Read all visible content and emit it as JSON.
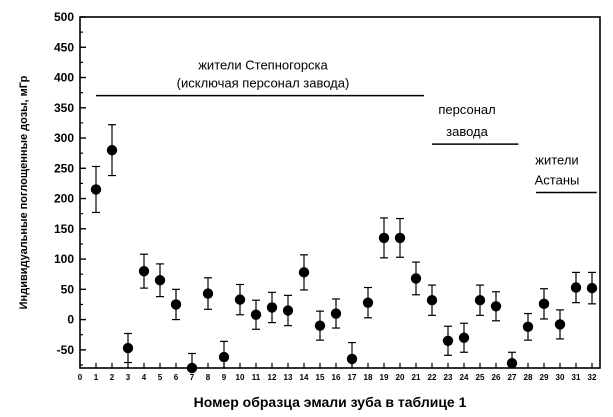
{
  "chart_data": {
    "type": "scatter",
    "title": "",
    "xlabel": "Номер образца эмали зуба в таблице 1",
    "ylabel": "Индивидуальные поглощенные дозы, мГр",
    "xlim": [
      0,
      32.5
    ],
    "ylim": [
      -80,
      500
    ],
    "x_ticks": [
      0,
      1,
      2,
      3,
      4,
      5,
      6,
      7,
      8,
      9,
      10,
      11,
      12,
      13,
      14,
      15,
      16,
      17,
      18,
      19,
      20,
      21,
      22,
      23,
      24,
      25,
      26,
      27,
      28,
      29,
      30,
      31,
      32
    ],
    "y_ticks": [
      -50,
      0,
      50,
      100,
      150,
      200,
      250,
      300,
      350,
      400,
      450,
      500
    ],
    "grid": false,
    "legend": "none",
    "marker_color": "#000000",
    "series": [
      {
        "x": [
          1,
          2,
          3,
          4,
          5,
          6,
          7,
          8,
          9,
          10,
          11,
          12,
          13,
          14,
          15,
          16,
          17,
          18,
          19,
          20,
          21,
          22,
          23,
          24,
          25,
          26,
          27,
          28,
          29,
          30,
          31,
          32
        ],
        "y": [
          215,
          280,
          -47,
          80,
          65,
          25,
          -80,
          43,
          -62,
          33,
          8,
          20,
          15,
          78,
          -10,
          10,
          -65,
          28,
          135,
          135,
          68,
          32,
          -35,
          -30,
          32,
          22,
          -72,
          -12,
          26,
          -8,
          53,
          52
        ],
        "error": [
          38,
          42,
          24,
          28,
          27,
          25,
          24,
          26,
          26,
          25,
          24,
          25,
          25,
          29,
          24,
          24,
          27,
          25,
          33,
          32,
          27,
          25,
          24,
          24,
          25,
          24,
          18,
          22,
          25,
          24,
          25,
          26
        ]
      }
    ],
    "annotations": [
      {
        "lines": [
          "жители Степногорска",
          "(исключая персонал завода)"
        ],
        "x_range": [
          1,
          21.5
        ],
        "y": 370
      },
      {
        "lines": [
          "персонал",
          "завода"
        ],
        "x_range": [
          22,
          27.4
        ],
        "y": 290
      },
      {
        "lines": [
          "жители",
          "Астаны"
        ],
        "x_range": [
          28.5,
          32.3
        ],
        "y": 210
      }
    ]
  }
}
